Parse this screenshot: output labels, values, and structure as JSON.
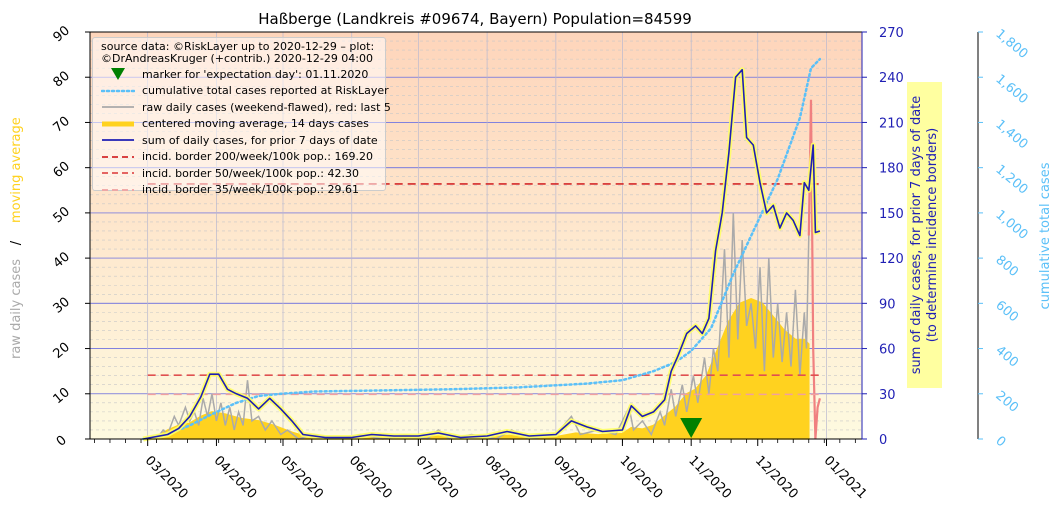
{
  "chart_data": {
    "type": "line",
    "title": "Haßberge (Landkreis #09674, Bayern) Population=84599",
    "ylabel_left_part1": "raw daily cases",
    "ylabel_left_sep": "/",
    "ylabel_left_part2": "moving average",
    "ylabel_right1_line1": "sum of daily cases, for prior 7 days of date",
    "ylabel_right1_line2": "(to determine incidence borders)",
    "ylabel_right2": "cumulative total cases",
    "left_axis": {
      "ylim": [
        0,
        90
      ],
      "ticks": [
        "0",
        "10",
        "20",
        "30",
        "40",
        "50",
        "60",
        "70",
        "80",
        "90"
      ]
    },
    "right_axis_1": {
      "ylim": [
        0,
        270
      ],
      "ticks": [
        "0",
        "30",
        "60",
        "90",
        "120",
        "150",
        "180",
        "210",
        "240",
        "270"
      ]
    },
    "right_axis_2": {
      "ylim": [
        0,
        1800
      ],
      "ticks": [
        "0",
        "200",
        "400",
        "600",
        "800",
        "1,000",
        "1,200",
        "1,400",
        "1,600",
        "1,800"
      ]
    },
    "x_ticks": [
      "03/2020",
      "04/2020",
      "05/2020",
      "06/2020",
      "07/2020",
      "08/2020",
      "09/2020",
      "10/2020",
      "11/2020",
      "12/2020",
      "01/2021"
    ],
    "x_range": [
      "2020-02-04",
      "2021-01-17"
    ],
    "grid": true,
    "legend_position": "top-left",
    "legend": {
      "source_line1": "source data: ©RiskLayer up to 2020-12-29 – plot:",
      "source_line2": "©DrAndreasKruger (+contrib.) 2020-12-29 04:00",
      "entries": [
        {
          "label": "marker for 'expectation day': 01.11.2020",
          "kind": "marker",
          "color": "#008000"
        },
        {
          "label": "cumulative total cases reported at RiskLayer",
          "kind": "dotted",
          "color": "#5bc0f8"
        },
        {
          "label": "raw daily cases (weekend-flawed), red: last 5",
          "kind": "line",
          "color": "#aaaaaa"
        },
        {
          "label": "centered moving average, 14 days cases",
          "kind": "thick",
          "color": "#ffd21f"
        },
        {
          "label": "sum of daily cases, for prior 7 days of date",
          "kind": "line",
          "color": "#1f1fb4"
        },
        {
          "label": "incid. border 200/week/100k pop.: 169.20",
          "kind": "dashed",
          "color": "#d42a2a"
        },
        {
          "label": "incid. border 50/week/100k pop.: 42.30",
          "kind": "dashed",
          "color": "#e05050"
        },
        {
          "label": "incid. border 35/week/100k pop.: 29.61",
          "kind": "dashed",
          "color": "#f0a0a0"
        }
      ]
    },
    "expectation_day": "2020-11-01",
    "incidence_borders_7day": [
      169.2,
      42.3,
      29.61
    ],
    "series": {
      "moving_average": [
        [
          "2020-02-28",
          0
        ],
        [
          "2020-03-05",
          0.5
        ],
        [
          "2020-03-10",
          2
        ],
        [
          "2020-03-15",
          3
        ],
        [
          "2020-03-20",
          3.5
        ],
        [
          "2020-03-25",
          5
        ],
        [
          "2020-03-30",
          6
        ],
        [
          "2020-04-05",
          5.5
        ],
        [
          "2020-04-12",
          4.5
        ],
        [
          "2020-04-20",
          4
        ],
        [
          "2020-04-27",
          3
        ],
        [
          "2020-05-05",
          1.5
        ],
        [
          "2020-05-12",
          0.5
        ],
        [
          "2020-05-20",
          0.2
        ],
        [
          "2020-06-01",
          0.3
        ],
        [
          "2020-06-10",
          0.6
        ],
        [
          "2020-06-20",
          0.4
        ],
        [
          "2020-07-01",
          0.4
        ],
        [
          "2020-07-10",
          0.7
        ],
        [
          "2020-07-20",
          0.5
        ],
        [
          "2020-08-01",
          0.4
        ],
        [
          "2020-08-10",
          0.8
        ],
        [
          "2020-08-20",
          0.6
        ],
        [
          "2020-09-01",
          0.5
        ],
        [
          "2020-09-10",
          1.3
        ],
        [
          "2020-09-20",
          0.9
        ],
        [
          "2020-10-01",
          1.2
        ],
        [
          "2020-10-05",
          2.5
        ],
        [
          "2020-10-10",
          2.2
        ],
        [
          "2020-10-15",
          3
        ],
        [
          "2020-10-20",
          5
        ],
        [
          "2020-10-25",
          7
        ],
        [
          "2020-10-30",
          10
        ],
        [
          "2020-11-03",
          11
        ],
        [
          "2020-11-08",
          14
        ],
        [
          "2020-11-13",
          20
        ],
        [
          "2020-11-18",
          26
        ],
        [
          "2020-11-23",
          30
        ],
        [
          "2020-11-28",
          31
        ],
        [
          "2020-12-03",
          30
        ],
        [
          "2020-12-08",
          27
        ],
        [
          "2020-12-13",
          24
        ],
        [
          "2020-12-18",
          22
        ],
        [
          "2020-12-22",
          22
        ],
        [
          "2020-12-24",
          21
        ],
        [
          "2020-12-24",
          0
        ]
      ],
      "raw_daily": [
        [
          "2020-03-05",
          0
        ],
        [
          "2020-03-08",
          2
        ],
        [
          "2020-03-10",
          1
        ],
        [
          "2020-03-13",
          5
        ],
        [
          "2020-03-15",
          3
        ],
        [
          "2020-03-18",
          7
        ],
        [
          "2020-03-20",
          4
        ],
        [
          "2020-03-22",
          6
        ],
        [
          "2020-03-24",
          3
        ],
        [
          "2020-03-26",
          9
        ],
        [
          "2020-03-28",
          5
        ],
        [
          "2020-03-30",
          10
        ],
        [
          "2020-04-01",
          4
        ],
        [
          "2020-04-03",
          8
        ],
        [
          "2020-04-05",
          3
        ],
        [
          "2020-04-07",
          7
        ],
        [
          "2020-04-09",
          2
        ],
        [
          "2020-04-11",
          6
        ],
        [
          "2020-04-13",
          3
        ],
        [
          "2020-04-15",
          13
        ],
        [
          "2020-04-17",
          4
        ],
        [
          "2020-04-20",
          5
        ],
        [
          "2020-04-23",
          2
        ],
        [
          "2020-04-26",
          4
        ],
        [
          "2020-04-30",
          1
        ],
        [
          "2020-05-03",
          2
        ],
        [
          "2020-05-08",
          0
        ],
        [
          "2020-05-15",
          1
        ],
        [
          "2020-05-25",
          0
        ],
        [
          "2020-06-05",
          1
        ],
        [
          "2020-06-15",
          0
        ],
        [
          "2020-06-25",
          1
        ],
        [
          "2020-07-05",
          0
        ],
        [
          "2020-07-10",
          2
        ],
        [
          "2020-07-15",
          0
        ],
        [
          "2020-07-25",
          1
        ],
        [
          "2020-08-05",
          0
        ],
        [
          "2020-08-12",
          2
        ],
        [
          "2020-08-20",
          0
        ],
        [
          "2020-09-01",
          1
        ],
        [
          "2020-09-08",
          5
        ],
        [
          "2020-09-12",
          1
        ],
        [
          "2020-09-20",
          2
        ],
        [
          "2020-09-28",
          1
        ],
        [
          "2020-10-04",
          7
        ],
        [
          "2020-10-06",
          2
        ],
        [
          "2020-10-10",
          4
        ],
        [
          "2020-10-14",
          1
        ],
        [
          "2020-10-18",
          6
        ],
        [
          "2020-10-20",
          3
        ],
        [
          "2020-10-23",
          11
        ],
        [
          "2020-10-25",
          5
        ],
        [
          "2020-10-28",
          12
        ],
        [
          "2020-10-30",
          6
        ],
        [
          "2020-11-02",
          14
        ],
        [
          "2020-11-04",
          8
        ],
        [
          "2020-11-07",
          18
        ],
        [
          "2020-11-09",
          10
        ],
        [
          "2020-11-11",
          20
        ],
        [
          "2020-11-13",
          15
        ],
        [
          "2020-11-16",
          42
        ],
        [
          "2020-11-18",
          18
        ],
        [
          "2020-11-20",
          50
        ],
        [
          "2020-11-22",
          22
        ],
        [
          "2020-11-24",
          44
        ],
        [
          "2020-11-26",
          25
        ],
        [
          "2020-11-28",
          30
        ],
        [
          "2020-11-30",
          20
        ],
        [
          "2020-12-02",
          38
        ],
        [
          "2020-12-04",
          15
        ],
        [
          "2020-12-06",
          40
        ],
        [
          "2020-12-08",
          18
        ],
        [
          "2020-12-10",
          30
        ],
        [
          "2020-12-12",
          17
        ],
        [
          "2020-12-14",
          28
        ],
        [
          "2020-12-16",
          16
        ],
        [
          "2020-12-18",
          33
        ],
        [
          "2020-12-20",
          14
        ],
        [
          "2020-12-22",
          28
        ],
        [
          "2020-12-23",
          20
        ],
        [
          "2020-12-24",
          45
        ]
      ],
      "raw_daily_last5": [
        [
          "2020-12-24",
          45
        ],
        [
          "2020-12-25",
          75
        ],
        [
          "2020-12-26",
          20
        ],
        [
          "2020-12-27",
          0
        ],
        [
          "2020-12-28",
          7
        ],
        [
          "2020-12-29",
          9
        ]
      ],
      "sum_7day": [
        [
          "2020-02-28",
          0
        ],
        [
          "2020-03-10",
          3
        ],
        [
          "2020-03-15",
          7
        ],
        [
          "2020-03-20",
          15
        ],
        [
          "2020-03-25",
          28
        ],
        [
          "2020-03-29",
          43
        ],
        [
          "2020-04-02",
          43
        ],
        [
          "2020-04-06",
          33
        ],
        [
          "2020-04-10",
          30
        ],
        [
          "2020-04-15",
          27
        ],
        [
          "2020-04-20",
          20
        ],
        [
          "2020-04-25",
          27
        ],
        [
          "2020-04-30",
          20
        ],
        [
          "2020-05-05",
          12
        ],
        [
          "2020-05-10",
          3
        ],
        [
          "2020-05-20",
          1
        ],
        [
          "2020-06-01",
          1
        ],
        [
          "2020-06-10",
          3
        ],
        [
          "2020-06-20",
          2
        ],
        [
          "2020-07-01",
          2
        ],
        [
          "2020-07-10",
          4
        ],
        [
          "2020-07-20",
          1
        ],
        [
          "2020-08-01",
          2
        ],
        [
          "2020-08-10",
          5
        ],
        [
          "2020-08-20",
          2
        ],
        [
          "2020-09-01",
          3
        ],
        [
          "2020-09-08",
          12
        ],
        [
          "2020-09-15",
          8
        ],
        [
          "2020-09-22",
          5
        ],
        [
          "2020-10-01",
          6
        ],
        [
          "2020-10-05",
          22
        ],
        [
          "2020-10-10",
          15
        ],
        [
          "2020-10-15",
          18
        ],
        [
          "2020-10-20",
          26
        ],
        [
          "2020-10-23",
          45
        ],
        [
          "2020-10-26",
          55
        ],
        [
          "2020-10-30",
          70
        ],
        [
          "2020-11-03",
          75
        ],
        [
          "2020-11-06",
          70
        ],
        [
          "2020-11-09",
          80
        ],
        [
          "2020-11-12",
          125
        ],
        [
          "2020-11-15",
          150
        ],
        [
          "2020-11-18",
          190
        ],
        [
          "2020-11-21",
          240
        ],
        [
          "2020-11-24",
          245
        ],
        [
          "2020-11-26",
          200
        ],
        [
          "2020-11-29",
          195
        ],
        [
          "2020-12-02",
          170
        ],
        [
          "2020-12-05",
          150
        ],
        [
          "2020-12-08",
          155
        ],
        [
          "2020-12-11",
          140
        ],
        [
          "2020-12-14",
          150
        ],
        [
          "2020-12-17",
          145
        ],
        [
          "2020-12-20",
          135
        ],
        [
          "2020-12-22",
          170
        ],
        [
          "2020-12-24",
          165
        ],
        [
          "2020-12-26",
          195
        ],
        [
          "2020-12-27",
          137
        ],
        [
          "2020-12-29",
          138
        ]
      ],
      "cumulative": [
        [
          "2020-02-28",
          0
        ],
        [
          "2020-03-10",
          20
        ],
        [
          "2020-03-20",
          60
        ],
        [
          "2020-03-30",
          110
        ],
        [
          "2020-04-10",
          160
        ],
        [
          "2020-04-20",
          190
        ],
        [
          "2020-04-30",
          200
        ],
        [
          "2020-05-15",
          210
        ],
        [
          "2020-06-15",
          215
        ],
        [
          "2020-07-15",
          220
        ],
        [
          "2020-08-15",
          228
        ],
        [
          "2020-09-15",
          245
        ],
        [
          "2020-10-01",
          260
        ],
        [
          "2020-10-15",
          300
        ],
        [
          "2020-10-25",
          340
        ],
        [
          "2020-11-01",
          390
        ],
        [
          "2020-11-10",
          490
        ],
        [
          "2020-11-20",
          730
        ],
        [
          "2020-11-30",
          940
        ],
        [
          "2020-12-10",
          1150
        ],
        [
          "2020-12-20",
          1420
        ],
        [
          "2020-12-25",
          1640
        ],
        [
          "2020-12-29",
          1680
        ]
      ]
    },
    "colors": {
      "bg_top": "#fed5bb",
      "bg_bottom": "#fefae0",
      "moving_average": "#ffd21f",
      "raw_daily": "#aaaaaa",
      "raw_last5": "#f08080",
      "sum_7day": "#1f1fb4",
      "sum_7day_halo": "#ffff64",
      "cumulative": "#5bc0f8",
      "border200": "#d42a2a",
      "border50": "#e05050",
      "border35": "#f0a0a0",
      "marker": "#008000",
      "left_label_raw": "#aaaaaa",
      "left_label_avg": "#ffd21f",
      "right1_axis": "#1f1fb4",
      "right2_axis": "#5bc0f8"
    }
  }
}
